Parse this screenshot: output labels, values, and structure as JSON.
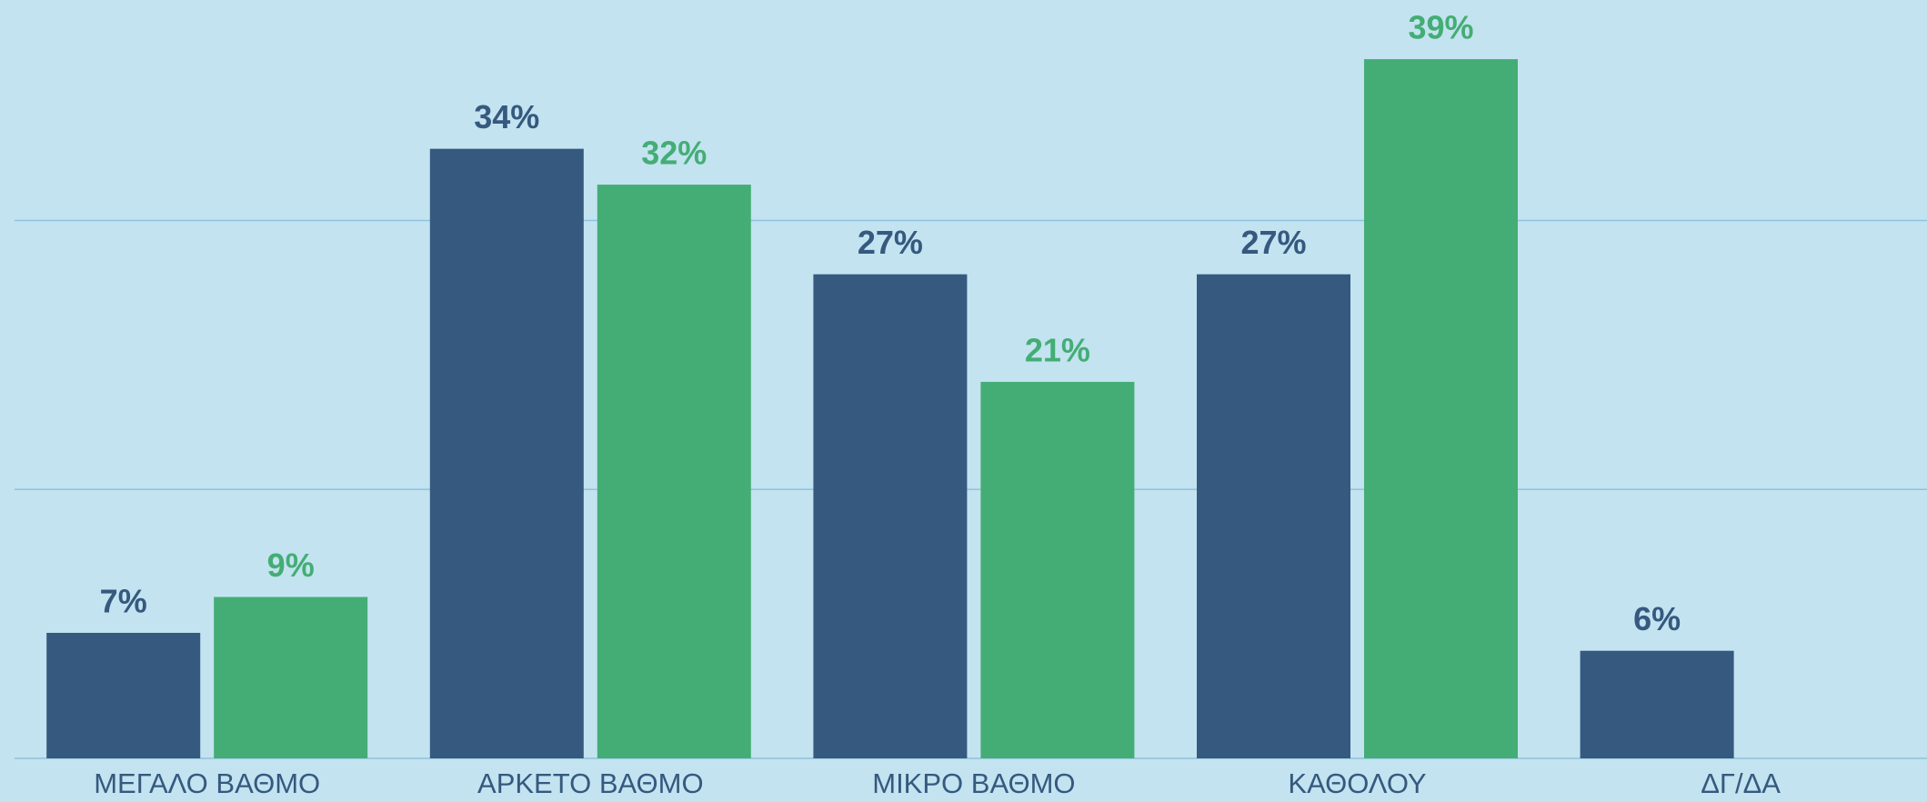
{
  "chart_data": {
    "type": "bar",
    "categories": [
      "ΜΕΓΑΛΟ ΒΑΘΜΟ",
      "ΑΡΚΕΤΟ ΒΑΘΜΟ",
      "ΜΙΚΡΟ ΒΑΘΜΟ",
      "ΚΑΘΟΛΟΥ",
      "ΔΓ/ΔΑ"
    ],
    "series": [
      {
        "color": "#35597f",
        "values": [
          7,
          34,
          27,
          27,
          6
        ],
        "value_labels": [
          "7%",
          "34%",
          "27%",
          "27%",
          "6%"
        ]
      },
      {
        "color": "#44ad75",
        "values": [
          9,
          32,
          21,
          39,
          null
        ],
        "value_labels": [
          "9%",
          "32%",
          "21%",
          "39%",
          null
        ]
      }
    ],
    "ylim": [
      0,
      42.3
    ],
    "yticks": [
      0,
      15,
      30
    ],
    "grid": true
  }
}
